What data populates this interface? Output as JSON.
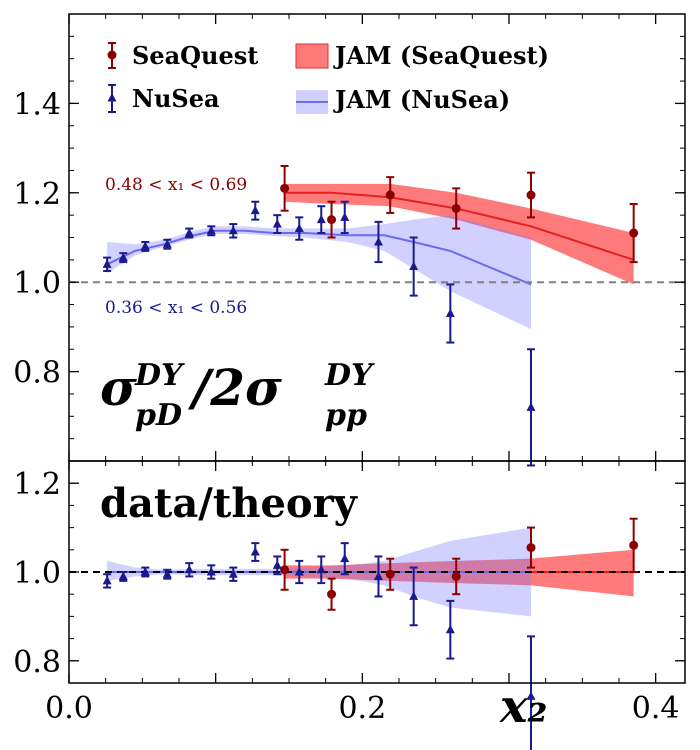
{
  "chart_data": {
    "type": "scatter",
    "x_label": "x₂",
    "x_ticks": [
      "0.0",
      "0.2",
      "0.4"
    ],
    "xlim": [
      0.0,
      0.42
    ],
    "legend_placement": "top-left",
    "colors": {
      "seaquest": "#8b0000",
      "nusea": "#1a1a8c",
      "jam_seaquest": "#ff4d4d",
      "jam_nusea": "#6b6bf0",
      "reference": "#808080"
    },
    "panels": [
      {
        "id": "top",
        "ylabel": "σ_pD^DY / 2σ_pp^DY",
        "ylim": [
          0.6,
          1.6
        ],
        "y_ticks": [
          "0.8",
          "1.0",
          "1.2",
          "1.4"
        ],
        "reference_line": 1.0,
        "annotations": [
          "0.48 < x₁ < 0.69",
          "0.36 < x₁ < 0.56"
        ],
        "series": [
          {
            "name": "SeaQuest",
            "kind": "points",
            "x": [
              0.147,
              0.179,
              0.219,
              0.264,
              0.315,
              0.385
            ],
            "y": [
              1.21,
              1.14,
              1.195,
              1.165,
              1.195,
              1.11
            ],
            "err": [
              0.05,
              0.04,
              0.04,
              0.045,
              0.05,
              0.065
            ]
          },
          {
            "name": "NuSea",
            "kind": "points",
            "x": [
              0.026,
              0.037,
              0.052,
              0.067,
              0.082,
              0.097,
              0.112,
              0.127,
              0.142,
              0.157,
              0.172,
              0.188,
              0.211,
              0.235,
              0.26,
              0.315
            ],
            "y": [
              1.04,
              1.055,
              1.08,
              1.085,
              1.11,
              1.115,
              1.115,
              1.16,
              1.13,
              1.12,
              1.14,
              1.145,
              1.09,
              1.035,
              0.93,
              0.72
            ],
            "err": [
              0.015,
              0.01,
              0.01,
              0.01,
              0.01,
              0.01,
              0.015,
              0.02,
              0.02,
              0.025,
              0.03,
              0.035,
              0.045,
              0.065,
              0.065,
              0.13
            ]
          },
          {
            "name": "JAM (SeaQuest)",
            "kind": "band",
            "x": [
              0.147,
              0.179,
              0.219,
              0.264,
              0.315,
              0.385
            ],
            "y": [
              1.2,
              1.2,
              1.19,
              1.165,
              1.125,
              1.05
            ],
            "lo": [
              1.18,
              1.175,
              1.17,
              1.14,
              1.095,
              0.995
            ],
            "hi": [
              1.22,
              1.22,
              1.22,
              1.2,
              1.165,
              1.11
            ]
          },
          {
            "name": "JAM (NuSea)",
            "kind": "band",
            "x": [
              0.026,
              0.045,
              0.065,
              0.085,
              0.1,
              0.12,
              0.14,
              0.16,
              0.19,
              0.215,
              0.235,
              0.26,
              0.315
            ],
            "y": [
              1.04,
              1.07,
              1.085,
              1.105,
              1.115,
              1.115,
              1.11,
              1.11,
              1.105,
              1.105,
              1.09,
              1.07,
              0.995
            ],
            "lo": [
              1.02,
              1.06,
              1.08,
              1.098,
              1.108,
              1.108,
              1.103,
              1.1,
              1.09,
              1.07,
              1.03,
              0.98,
              0.895
            ],
            "hi": [
              1.09,
              1.085,
              1.095,
              1.115,
              1.125,
              1.125,
              1.12,
              1.12,
              1.12,
              1.13,
              1.14,
              1.15,
              1.1
            ]
          }
        ]
      },
      {
        "id": "bottom",
        "title": "data/theory",
        "ylim": [
          0.75,
          1.25
        ],
        "y_ticks": [
          "0.8",
          "1.0",
          "1.2"
        ],
        "reference_line": 1.0,
        "series": [
          {
            "name": "SeaQuest",
            "kind": "points",
            "x": [
              0.147,
              0.179,
              0.219,
              0.264,
              0.315,
              0.385
            ],
            "y": [
              1.005,
              0.95,
              0.995,
              0.99,
              1.055,
              1.06
            ],
            "err": [
              0.045,
              0.035,
              0.035,
              0.04,
              0.045,
              0.06
            ]
          },
          {
            "name": "NuSea",
            "kind": "points",
            "x": [
              0.026,
              0.037,
              0.052,
              0.067,
              0.082,
              0.097,
              0.112,
              0.127,
              0.142,
              0.157,
              0.172,
              0.188,
              0.211,
              0.235,
              0.26,
              0.315
            ],
            "y": [
              0.98,
              0.99,
              1.0,
              0.995,
              1.005,
              1.0,
              0.995,
              1.045,
              1.015,
              1.0,
              1.005,
              1.03,
              0.99,
              0.945,
              0.87,
              0.72
            ],
            "err": [
              0.015,
              0.01,
              0.01,
              0.01,
              0.015,
              0.015,
              0.015,
              0.02,
              0.02,
              0.025,
              0.03,
              0.035,
              0.045,
              0.065,
              0.065,
              0.135
            ]
          },
          {
            "name": "JAM (SeaQuest)",
            "kind": "band",
            "x": [
              0.147,
              0.179,
              0.219,
              0.264,
              0.315,
              0.385
            ],
            "y": [
              1.0,
              1.0,
              1.0,
              1.0,
              1.0,
              1.0
            ],
            "lo": [
              0.985,
              0.985,
              0.98,
              0.975,
              0.97,
              0.945
            ],
            "hi": [
              1.015,
              1.015,
              1.02,
              1.025,
              1.03,
              1.05
            ]
          },
          {
            "name": "JAM (NuSea)",
            "kind": "band",
            "x": [
              0.026,
              0.045,
              0.065,
              0.085,
              0.1,
              0.12,
              0.14,
              0.16,
              0.19,
              0.215,
              0.235,
              0.26,
              0.315
            ],
            "y": [
              1.0,
              1.0,
              1.0,
              1.0,
              1.0,
              1.0,
              1.0,
              1.0,
              1.0,
              1.0,
              1.0,
              1.0,
              1.0
            ],
            "lo": [
              0.98,
              0.99,
              0.995,
              0.993,
              0.993,
              0.993,
              0.993,
              0.99,
              0.985,
              0.97,
              0.945,
              0.92,
              0.9
            ],
            "hi": [
              1.025,
              1.01,
              1.005,
              1.007,
              1.007,
              1.007,
              1.007,
              1.01,
              1.015,
              1.025,
              1.045,
              1.07,
              1.1
            ]
          }
        ]
      }
    ]
  }
}
